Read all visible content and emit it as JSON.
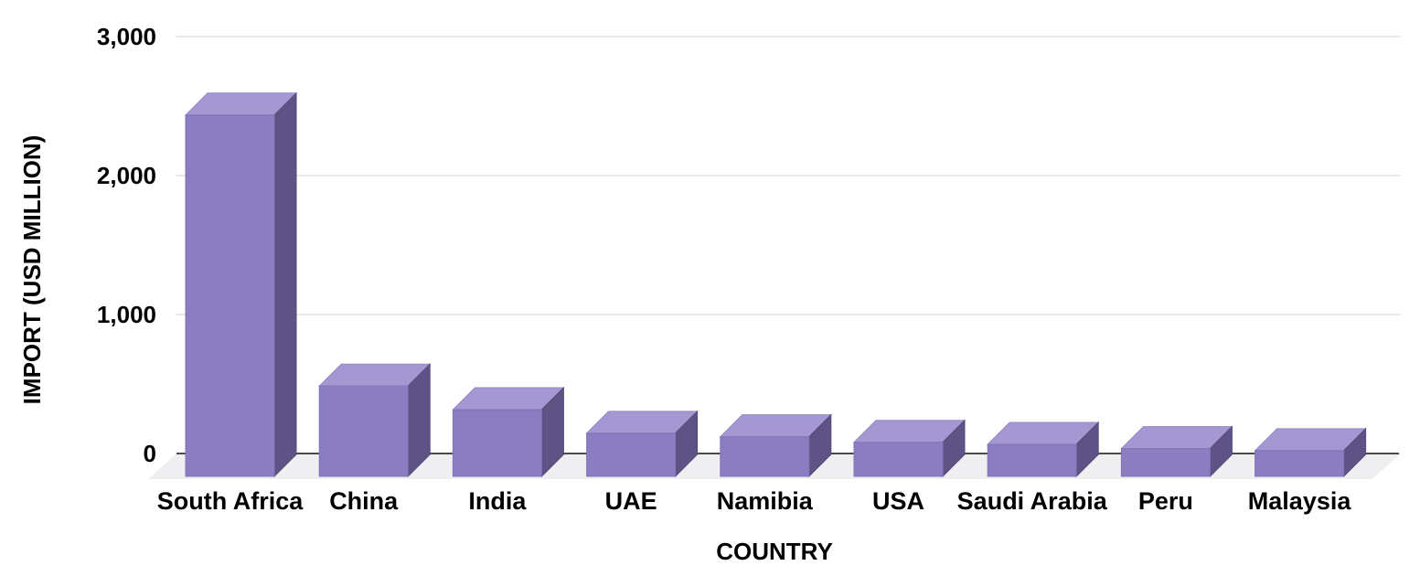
{
  "chart_data": {
    "type": "bar",
    "style": "3d-column",
    "title": "",
    "xlabel": "COUNTRY",
    "ylabel": "IMPORT (USD MILLION)",
    "categories": [
      "South Africa",
      "China",
      "India",
      "UAE",
      "Namibia",
      "USA",
      "Saudi Arabia",
      "Peru",
      "Malaysia"
    ],
    "values": [
      2600,
      650,
      480,
      310,
      285,
      245,
      230,
      200,
      185
    ],
    "series_name": "Import (USD Million)",
    "ylim": [
      0,
      3000
    ],
    "yticks": [
      0,
      1000,
      2000,
      3000
    ],
    "ytick_labels": [
      "0",
      "1,000",
      "2,000",
      "3,000"
    ],
    "grid": true,
    "legend": "none",
    "colors": {
      "bar_front": "#8C7CC2",
      "bar_top": "#A597D1",
      "bar_side": "#5E5384",
      "bar_front_edge": "#8374B8",
      "bar_top_edge": "#9788C6",
      "bar_side_edge": "#564B7A",
      "floor": "#EFEFF1",
      "gridline": "#E8E8EA",
      "axis_line": "#4A4A4A",
      "text": "#000000",
      "background": "#FFFFFF"
    }
  }
}
